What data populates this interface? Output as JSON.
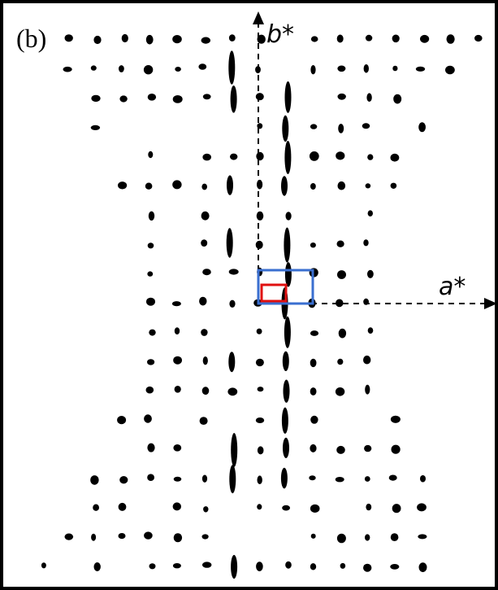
{
  "panel_label": "(b)",
  "axes": {
    "vertical": "b*",
    "horizontal": "a*"
  }
}
